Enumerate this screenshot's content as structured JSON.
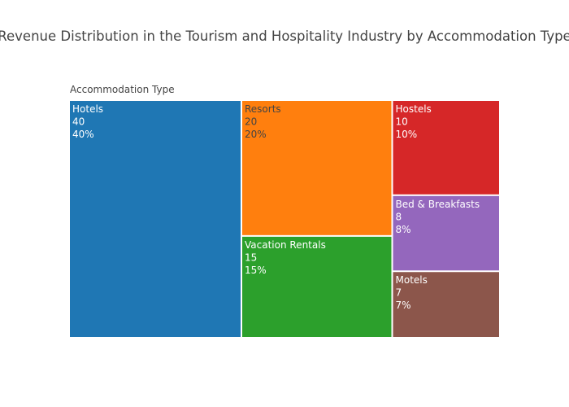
{
  "chart_data": {
    "type": "treemap",
    "title": "Revenue Distribution in the Tourism and Hospitality Industry by Accommodation Type",
    "root_label": "Accommodation Type",
    "categories": [
      "Hotels",
      "Resorts",
      "Vacation Rentals",
      "Hostels",
      "Bed & Breakfasts",
      "Motels"
    ],
    "values": [
      40,
      20,
      15,
      10,
      8,
      7
    ],
    "value_labels": [
      "40",
      "20",
      "15",
      "10",
      "8",
      "7"
    ],
    "percent_labels": [
      "40%",
      "20%",
      "15%",
      "10%",
      "8%",
      "7%"
    ],
    "colors": [
      "#1f77b4",
      "#ff7f0e",
      "#2ca02c",
      "#d62728",
      "#9467bd",
      "#8c564b"
    ],
    "text_colors": [
      "#ffffff",
      "#444444",
      "#ffffff",
      "#ffffff",
      "#ffffff",
      "#ffffff"
    ]
  }
}
